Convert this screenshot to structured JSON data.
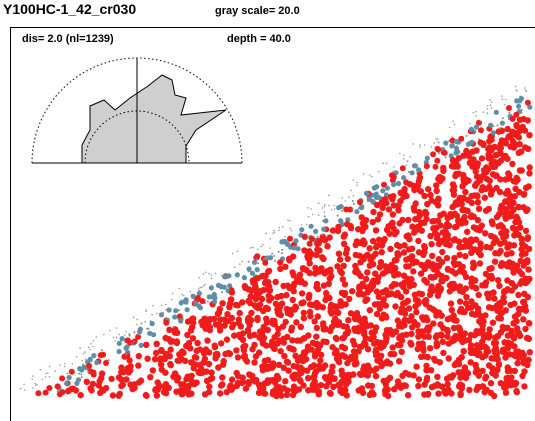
{
  "header": {
    "title": "Y100HC-1_42_cr030",
    "gray_scale": "gray scale= 20.0"
  },
  "panel": {
    "dis": "dis= 2.0  (nl=1239)",
    "depth": "depth =   40.0"
  }
}
